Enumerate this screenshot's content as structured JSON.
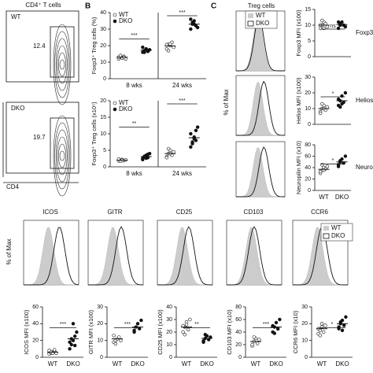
{
  "panel_letters": [
    "B",
    "C"
  ],
  "panel_a": {
    "title": "CD4⁺ T cells",
    "plots": [
      {
        "label": "WT",
        "value": 12.4
      },
      {
        "label": "DKO",
        "value": 19.7
      }
    ],
    "x_label": "CD4"
  },
  "panel_b": {
    "plots": [
      {
        "ylabel": "Foxp3⁺ Treg cells (%)",
        "ylim": [
          0,
          40
        ],
        "yticks": [
          0,
          10,
          20,
          30,
          40
        ],
        "legend": [
          "WT",
          "DKO"
        ],
        "x_labels": [
          "8 wks",
          "24 wks"
        ],
        "groups": [
          {
            "marker": "open",
            "values": [
              12,
              13,
              12.5,
              13.5,
              12,
              13,
              14,
              12.5,
              13
            ],
            "mean": 13
          },
          {
            "marker": "filled",
            "values": [
              16,
              17,
              18,
              16.5,
              17.5,
              19,
              16,
              18,
              17
            ],
            "mean": 17.3
          },
          {
            "marker": "open",
            "values": [
              18,
              21,
              20,
              22,
              19,
              20.5,
              17,
              21
            ],
            "mean": 19.8
          },
          {
            "marker": "filled",
            "values": [
              30,
              33,
              35,
              32,
              31,
              36,
              34,
              33
            ],
            "mean": 33
          }
        ],
        "sig": [
          "***",
          "***"
        ]
      },
      {
        "ylabel": "Foxp3⁺ Treg cells (x10⁵)",
        "ylim": [
          0,
          20
        ],
        "yticks": [
          0,
          5,
          10,
          15,
          20
        ],
        "legend": [
          "WT",
          "DKO"
        ],
        "x_labels": [
          "8 wks",
          "24 wks"
        ],
        "groups": [
          {
            "marker": "open",
            "values": [
              1.8,
              2,
              2.2,
              1.9,
              2.1,
              2.3,
              1.7,
              2
            ],
            "mean": 2
          },
          {
            "marker": "filled",
            "values": [
              2.5,
              3,
              3.5,
              2.8,
              4,
              2.2,
              3.2,
              2.6,
              3.8
            ],
            "mean": 3.1
          },
          {
            "marker": "open",
            "values": [
              3,
              4,
              5,
              3.5,
              4.5,
              2.8,
              5.5,
              4
            ],
            "mean": 4
          },
          {
            "marker": "filled",
            "values": [
              6,
              7,
              9,
              8,
              12,
              10,
              7.5,
              8.5,
              11
            ],
            "mean": 8.8
          }
        ],
        "sig": [
          "**",
          "***"
        ]
      }
    ]
  },
  "panel_c": {
    "title": "Treg cells",
    "ylabel": "% of Max",
    "legend": [
      "WT",
      "DKO"
    ],
    "plots": [
      {
        "ylabel": "Foxp3 MFI (x100)",
        "side_label": "Foxp3",
        "ylim": [
          0,
          15
        ],
        "yticks": [
          0,
          5,
          10,
          15
        ],
        "groups": [
          {
            "marker": "open",
            "values": [
              9,
              10,
              11,
              10.5,
              9.5,
              10,
              11.5,
              9
            ],
            "mean": 10
          },
          {
            "marker": "filled",
            "values": [
              9,
              10,
              11,
              10,
              9.5,
              11,
              10.5
            ],
            "mean": 10.2
          }
        ],
        "sig": [
          "ns"
        ]
      },
      {
        "ylabel": "Helios MFI (x100)",
        "side_label": "Helios",
        "ylim": [
          0,
          30
        ],
        "yticks": [
          0,
          10,
          20,
          30
        ],
        "groups": [
          {
            "marker": "open",
            "values": [
              8,
              10,
              12,
              9,
              11,
              7,
              13,
              10
            ],
            "mean": 10
          },
          {
            "marker": "filled",
            "values": [
              12,
              15,
              18,
              14,
              20,
              16,
              11,
              13
            ],
            "mean": 15
          }
        ],
        "sig": [
          "*"
        ]
      },
      {
        "ylabel": "Neuropilin MFI (x10)",
        "side_label": "Neuropilin",
        "ylim": [
          0,
          80
        ],
        "yticks": [
          0,
          20,
          40,
          60,
          80
        ],
        "x_labels": [
          "WT",
          "DKO"
        ],
        "groups": [
          {
            "marker": "open",
            "values": [
              30,
              35,
              40,
              38,
              42,
              33,
              45,
              36
            ],
            "mean": 37
          },
          {
            "marker": "filled",
            "values": [
              42,
              50,
              55,
              48,
              60,
              45,
              52
            ],
            "mean": 50
          }
        ],
        "sig": [
          "*"
        ]
      }
    ]
  },
  "panel_d": {
    "ylabel": "% of Max",
    "legend": [
      "WT",
      "DKO"
    ],
    "titles": [
      "ICOS",
      "GITR",
      "CD25",
      "CD103",
      "CCR6"
    ],
    "plots": [
      {
        "ylabel": "ICOS MFI (x100)",
        "ylim": [
          0,
          60
        ],
        "yticks": [
          0,
          20,
          40,
          60
        ],
        "x_labels": [
          "WT",
          "DKO"
        ],
        "groups": [
          {
            "marker": "open",
            "values": [
              4,
              5,
              6,
              7,
              5,
              8,
              6,
              5,
              9
            ],
            "mean": 6
          },
          {
            "marker": "filled",
            "values": [
              10,
              15,
              20,
              25,
              30,
              18,
              22,
              40,
              14
            ],
            "mean": 22
          }
        ],
        "sig": [
          "***"
        ]
      },
      {
        "ylabel": "GITR MFI (x100)",
        "ylim": [
          0,
          30
        ],
        "yticks": [
          0,
          10,
          20,
          30
        ],
        "x_labels": [
          "WT",
          "DKO"
        ],
        "groups": [
          {
            "marker": "open",
            "values": [
              9,
              10,
              11,
              12,
              10,
              13,
              8
            ],
            "mean": 11
          },
          {
            "marker": "filled",
            "values": [
              15,
              18,
              20,
              17,
              22,
              16
            ],
            "mean": 18
          }
        ],
        "sig": [
          "***"
        ]
      },
      {
        "ylabel": "CD25 MFI (x100)",
        "ylim": [
          0,
          40
        ],
        "yticks": [
          0,
          10,
          20,
          30,
          40
        ],
        "x_labels": [
          "WT",
          "DKO"
        ],
        "groups": [
          {
            "marker": "open",
            "values": [
              20,
              24,
              28,
              22,
              30,
              25,
              18,
              26
            ],
            "mean": 24
          },
          {
            "marker": "filled",
            "values": [
              13,
              15,
              17,
              14,
              16,
              12,
              18
            ],
            "mean": 15
          }
        ],
        "sig": [
          "**"
        ]
      },
      {
        "ylabel": "CD103 MFI (x10)",
        "ylim": [
          0,
          80
        ],
        "yticks": [
          0,
          20,
          40,
          60,
          80
        ],
        "x_labels": [
          "WT",
          "DKO"
        ],
        "groups": [
          {
            "marker": "open",
            "values": [
              18,
              25,
              30,
              22,
              28,
              20,
              32
            ],
            "mean": 25
          },
          {
            "marker": "filled",
            "values": [
              40,
              48,
              55,
              45,
              60,
              50,
              38
            ],
            "mean": 48
          }
        ],
        "sig": [
          "***"
        ]
      },
      {
        "ylabel": "CCR6 MFI (x10)",
        "ylim": [
          0,
          30
        ],
        "yticks": [
          0,
          10,
          20,
          30
        ],
        "x_labels": [
          "WT",
          "DKO"
        ],
        "groups": [
          {
            "marker": "open",
            "values": [
              14,
              16,
              18,
              15,
              19,
              17,
              13,
              20
            ],
            "mean": 17
          },
          {
            "marker": "filled",
            "values": [
              17,
              20,
              22,
              19,
              24,
              18,
              21,
              16
            ],
            "mean": 20
          }
        ],
        "sig": [
          "*"
        ]
      }
    ]
  }
}
